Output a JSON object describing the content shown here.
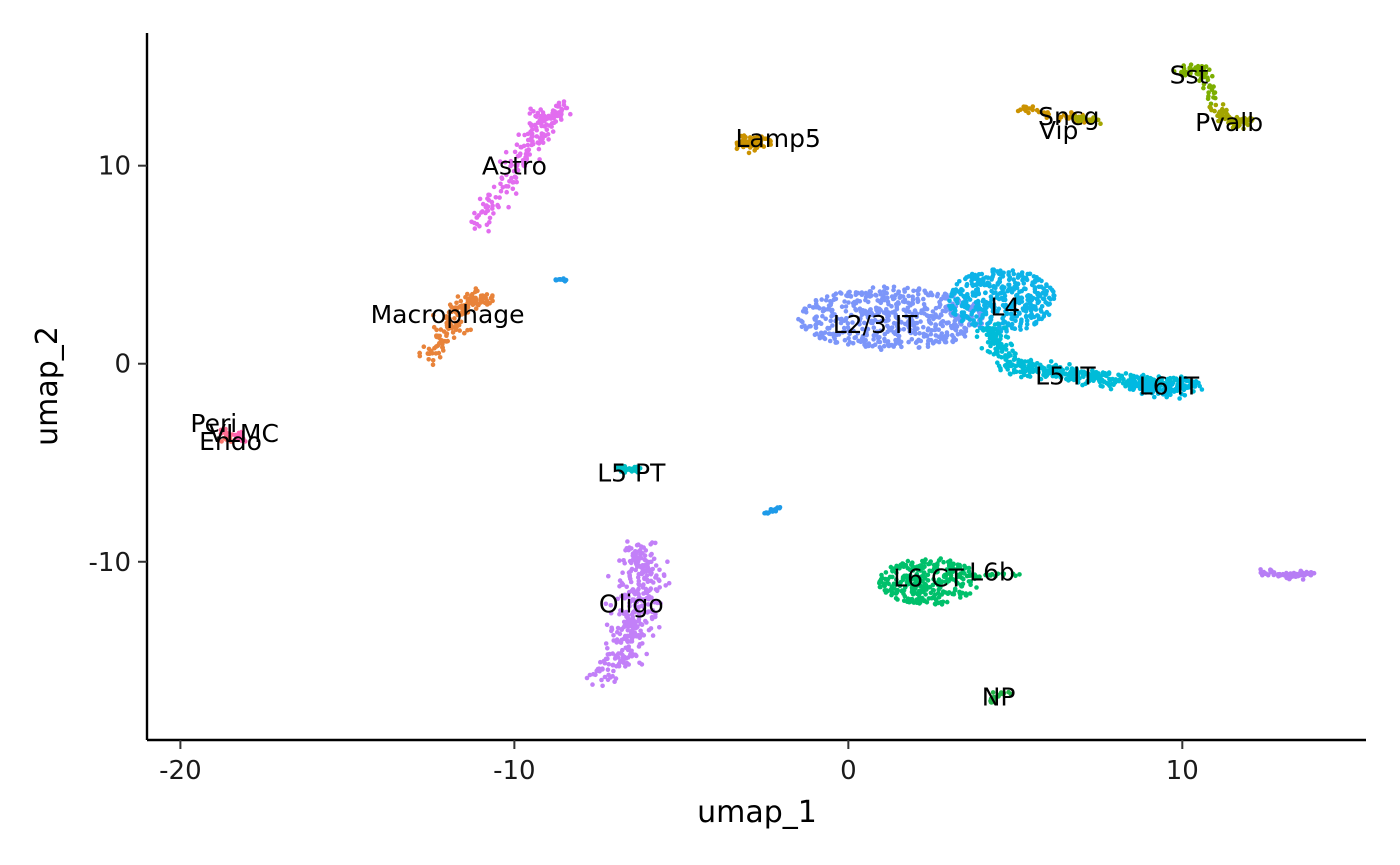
{
  "chart_data": {
    "type": "scatter",
    "title": "",
    "xlabel": "umap_1",
    "ylabel": "umap_2",
    "xlim": [
      -21,
      15.5
    ],
    "ylim": [
      -19,
      16.7
    ],
    "xticks": [
      -20,
      -10,
      0,
      10
    ],
    "yticks": [
      -10,
      0,
      10
    ],
    "xtick_labels": [
      "-20",
      "-10",
      "0",
      "10"
    ],
    "ytick_labels": [
      "-10",
      "0",
      "10"
    ],
    "grid": false,
    "legend": "none",
    "clusters": [
      {
        "name": "Astro",
        "color": "#E26DEF",
        "label": [
          -10.0,
          10.0
        ],
        "shape": [
          [
            -11.2,
            6.9
          ],
          [
            -10.2,
            9.0
          ],
          [
            -9.7,
            10.8
          ],
          [
            -9.1,
            12.3
          ],
          [
            -8.6,
            12.9
          ]
        ],
        "w": 0.45,
        "n": 200
      },
      {
        "name": "Macrophage",
        "color": "#E8833A",
        "label": [
          -12.0,
          2.5
        ],
        "shape": [
          [
            -12.5,
            0.3
          ],
          [
            -11.9,
            1.8
          ],
          [
            -11.5,
            3.0
          ],
          [
            -10.8,
            3.4
          ]
        ],
        "w": 0.4,
        "n": 160
      },
      {
        "name": "Lamp5",
        "color": "#CB9200",
        "label": [
          -2.1,
          11.4
        ],
        "shape": [
          [
            -3.3,
            11.1
          ],
          [
            -2.5,
            11.2
          ]
        ],
        "w": 0.35,
        "n": 80
      },
      {
        "name": "Sncg",
        "color": "#CB9200",
        "label": [
          6.6,
          12.5
        ],
        "shape": [
          [
            5.1,
            12.9
          ],
          [
            7.2,
            12.3
          ]
        ],
        "w": 0.22,
        "n": 50
      },
      {
        "name": "Vip",
        "color": "#A3A500",
        "label": [
          6.3,
          11.8
        ],
        "shape": [
          [
            6.6,
            12.4
          ],
          [
            7.5,
            12.2
          ]
        ],
        "w": 0.18,
        "n": 25
      },
      {
        "name": "Sst",
        "color": "#7CAE00",
        "label": [
          10.2,
          14.6
        ],
        "shape": [
          [
            10.0,
            14.7
          ],
          [
            10.6,
            14.9
          ],
          [
            11.0,
            13.0
          ]
        ],
        "w": 0.25,
        "n": 60
      },
      {
        "name": "Pvalb",
        "color": "#A3A500",
        "label": [
          11.4,
          12.2
        ],
        "shape": [
          [
            11.0,
            12.9
          ],
          [
            11.6,
            12.2
          ],
          [
            12.0,
            12.2
          ]
        ],
        "w": 0.3,
        "n": 70
      },
      {
        "name": "L2/3 IT",
        "color": "#7C96F9",
        "blob": [
          1.3,
          2.3,
          2.8,
          1.6
        ],
        "label": [
          0.8,
          2.0
        ],
        "n": 550
      },
      {
        "name": "L4",
        "color": "#0DB3E8",
        "blob": [
          4.6,
          3.2,
          1.6,
          1.6
        ],
        "label": [
          4.7,
          2.9
        ],
        "n": 420
      },
      {
        "name": "L5 IT",
        "color": "#00BCD8",
        "label": [
          6.5,
          -0.6
        ],
        "shape": [
          [
            4.2,
            1.8
          ],
          [
            4.8,
            0.0
          ],
          [
            6.5,
            -0.5
          ],
          [
            8.2,
            -0.9
          ],
          [
            10.2,
            -1.0
          ]
        ],
        "w": 0.4,
        "n": 420
      },
      {
        "name": "L6 IT",
        "color": "#00B9E3",
        "label": [
          9.6,
          -1.1
        ],
        "shape": [
          [
            8.6,
            -1.0
          ],
          [
            9.3,
            -1.4
          ],
          [
            10.3,
            -1.0
          ]
        ],
        "w": 0.35,
        "n": 120
      },
      {
        "name": "L5 PT",
        "color": "#00BFC4",
        "label": [
          -6.5,
          -5.5
        ],
        "shape": [
          [
            -6.9,
            -5.3
          ],
          [
            -6.3,
            -5.4
          ]
        ],
        "w": 0.2,
        "n": 30
      },
      {
        "name": "Oligo",
        "color": "#C280F8",
        "label": [
          -6.5,
          -12.1
        ],
        "shape": [
          [
            -6.2,
            -9.4
          ],
          [
            -6.2,
            -11.5
          ],
          [
            -6.5,
            -13.5
          ],
          [
            -7.3,
            -16.0
          ]
        ],
        "w": 0.65,
        "n": 360
      },
      {
        "name": "L6 CT",
        "color": "#00C06B",
        "blob": [
          2.4,
          -11.0,
          1.5,
          1.2
        ],
        "label": [
          2.4,
          -10.8
        ],
        "n": 300
      },
      {
        "name": "L6b",
        "color": "#00BA5E",
        "label": [
          4.3,
          -10.5
        ],
        "shape": [
          [
            3.0,
            -10.7
          ],
          [
            5.2,
            -10.6
          ]
        ],
        "w": 0.15,
        "n": 25
      },
      {
        "name": "NP",
        "color": "#25B44A",
        "label": [
          4.5,
          -16.8
        ],
        "shape": [
          [
            4.3,
            -17.1
          ],
          [
            4.7,
            -16.6
          ]
        ],
        "w": 0.15,
        "n": 15
      },
      {
        "name": "Peri",
        "color": "#FF6C91",
        "label": [
          -19.0,
          -3.0
        ],
        "shape": [
          [
            -18.9,
            -3.3
          ],
          [
            -18.5,
            -3.6
          ]
        ],
        "w": 0.15,
        "n": 8
      },
      {
        "name": "VLMC",
        "color": "#FF64B0",
        "label": [
          -18.1,
          -3.5
        ],
        "shape": [
          [
            -18.4,
            -3.6
          ],
          [
            -18.1,
            -3.9
          ]
        ],
        "w": 0.2,
        "n": 15
      },
      {
        "name": "Endo",
        "color": "#F8766D",
        "label": [
          -18.5,
          -3.9
        ],
        "shape": [
          [
            -18.7,
            -3.7
          ],
          [
            -18.4,
            -4.0
          ]
        ],
        "w": 0.15,
        "n": 8
      },
      {
        "name": "",
        "color": "#1E9BE9",
        "shape": [
          [
            -8.8,
            4.2
          ],
          [
            -8.4,
            4.3
          ]
        ],
        "w": 0.1,
        "n": 12
      },
      {
        "name": "",
        "color": "#1E9BE9",
        "shape": [
          [
            -2.5,
            -7.6
          ],
          [
            -2.1,
            -7.3
          ]
        ],
        "w": 0.1,
        "n": 18
      },
      {
        "name": "",
        "color": "#B77EF5",
        "shape": [
          [
            12.3,
            -10.5
          ],
          [
            13.2,
            -10.7
          ],
          [
            13.9,
            -10.6
          ]
        ],
        "w": 0.15,
        "n": 70
      }
    ]
  }
}
